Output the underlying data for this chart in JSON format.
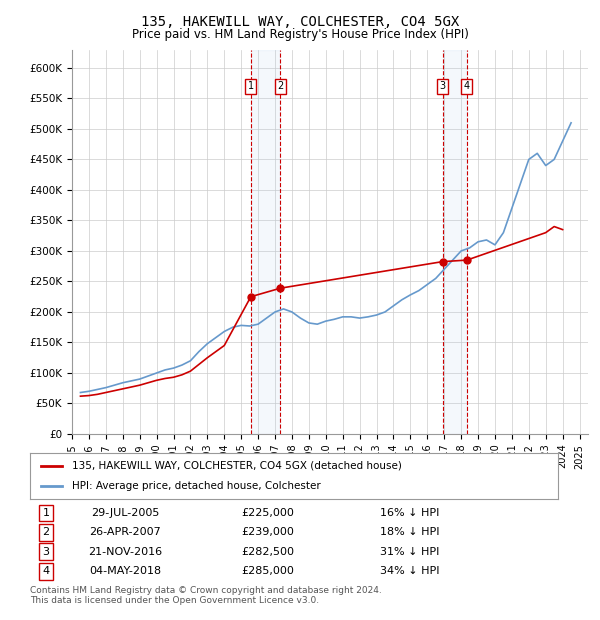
{
  "title1": "135, HAKEWILL WAY, COLCHESTER, CO4 5GX",
  "title2": "Price paid vs. HM Land Registry's House Price Index (HPI)",
  "ylabel_ticks": [
    "£0",
    "£50K",
    "£100K",
    "£150K",
    "£200K",
    "£250K",
    "£300K",
    "£350K",
    "£400K",
    "£450K",
    "£500K",
    "£550K",
    "£600K"
  ],
  "ytick_values": [
    0,
    50000,
    100000,
    150000,
    200000,
    250000,
    300000,
    350000,
    400000,
    450000,
    500000,
    550000,
    600000
  ],
  "ylim": [
    0,
    630000
  ],
  "xlim_start": 1995.0,
  "xlim_end": 2025.5,
  "xtick_years": [
    1995,
    1996,
    1997,
    1998,
    1999,
    2000,
    2001,
    2002,
    2003,
    2004,
    2005,
    2006,
    2007,
    2008,
    2009,
    2010,
    2011,
    2012,
    2013,
    2014,
    2015,
    2016,
    2017,
    2018,
    2019,
    2020,
    2021,
    2022,
    2023,
    2024,
    2025
  ],
  "hpi_line_color": "#6699cc",
  "price_line_color": "#cc0000",
  "marker_color": "#cc0000",
  "grid_color": "#cccccc",
  "bg_color": "#ffffff",
  "purchases": [
    {
      "id": 1,
      "date_dec": 2005.57,
      "price": 225000,
      "date_str": "29-JUL-2005",
      "pct": "16%"
    },
    {
      "id": 2,
      "date_dec": 2007.32,
      "price": 239000,
      "date_str": "26-APR-2007",
      "pct": "18%"
    },
    {
      "id": 3,
      "date_dec": 2016.9,
      "price": 282500,
      "date_str": "21-NOV-2016",
      "pct": "31%"
    },
    {
      "id": 4,
      "date_dec": 2018.34,
      "price": 285000,
      "date_str": "04-MAY-2018",
      "pct": "34%"
    }
  ],
  "legend_label_red": "135, HAKEWILL WAY, COLCHESTER, CO4 5GX (detached house)",
  "legend_label_blue": "HPI: Average price, detached house, Colchester",
  "footer": "Contains HM Land Registry data © Crown copyright and database right 2024.\nThis data is licensed under the Open Government Licence v3.0.",
  "hpi_data": {
    "years": [
      1995.5,
      1996.0,
      1996.5,
      1997.0,
      1997.5,
      1998.0,
      1998.5,
      1999.0,
      1999.5,
      2000.0,
      2000.5,
      2001.0,
      2001.5,
      2002.0,
      2002.5,
      2003.0,
      2003.5,
      2004.0,
      2004.5,
      2005.0,
      2005.5,
      2006.0,
      2006.5,
      2007.0,
      2007.5,
      2008.0,
      2008.5,
      2009.0,
      2009.5,
      2010.0,
      2010.5,
      2011.0,
      2011.5,
      2012.0,
      2012.5,
      2013.0,
      2013.5,
      2014.0,
      2014.5,
      2015.0,
      2015.5,
      2016.0,
      2016.5,
      2017.0,
      2017.5,
      2018.0,
      2018.5,
      2019.0,
      2019.5,
      2020.0,
      2020.5,
      2021.0,
      2021.5,
      2022.0,
      2022.5,
      2023.0,
      2023.5,
      2024.0,
      2024.5
    ],
    "values": [
      68000,
      70000,
      73000,
      76000,
      80000,
      84000,
      87000,
      90000,
      95000,
      100000,
      105000,
      108000,
      113000,
      120000,
      135000,
      148000,
      158000,
      168000,
      175000,
      178000,
      177000,
      180000,
      190000,
      200000,
      205000,
      200000,
      190000,
      182000,
      180000,
      185000,
      188000,
      192000,
      192000,
      190000,
      192000,
      195000,
      200000,
      210000,
      220000,
      228000,
      235000,
      245000,
      255000,
      270000,
      285000,
      300000,
      305000,
      315000,
      318000,
      310000,
      330000,
      370000,
      410000,
      450000,
      460000,
      440000,
      450000,
      480000,
      510000
    ]
  },
  "price_data": {
    "years": [
      1995.5,
      1996.0,
      1996.5,
      1997.0,
      1997.5,
      1998.0,
      1998.5,
      1999.0,
      1999.5,
      2000.0,
      2000.5,
      2001.0,
      2001.5,
      2002.0,
      2002.5,
      2003.0,
      2003.5,
      2004.0,
      2005.57,
      2007.32,
      2016.9,
      2018.34,
      2023.0,
      2023.5,
      2024.0
    ],
    "values": [
      62000,
      63000,
      65000,
      68000,
      71000,
      74000,
      77000,
      80000,
      84000,
      88000,
      91000,
      93000,
      97000,
      103000,
      114000,
      125000,
      135000,
      145000,
      225000,
      239000,
      282500,
      285000,
      330000,
      340000,
      335000
    ]
  }
}
